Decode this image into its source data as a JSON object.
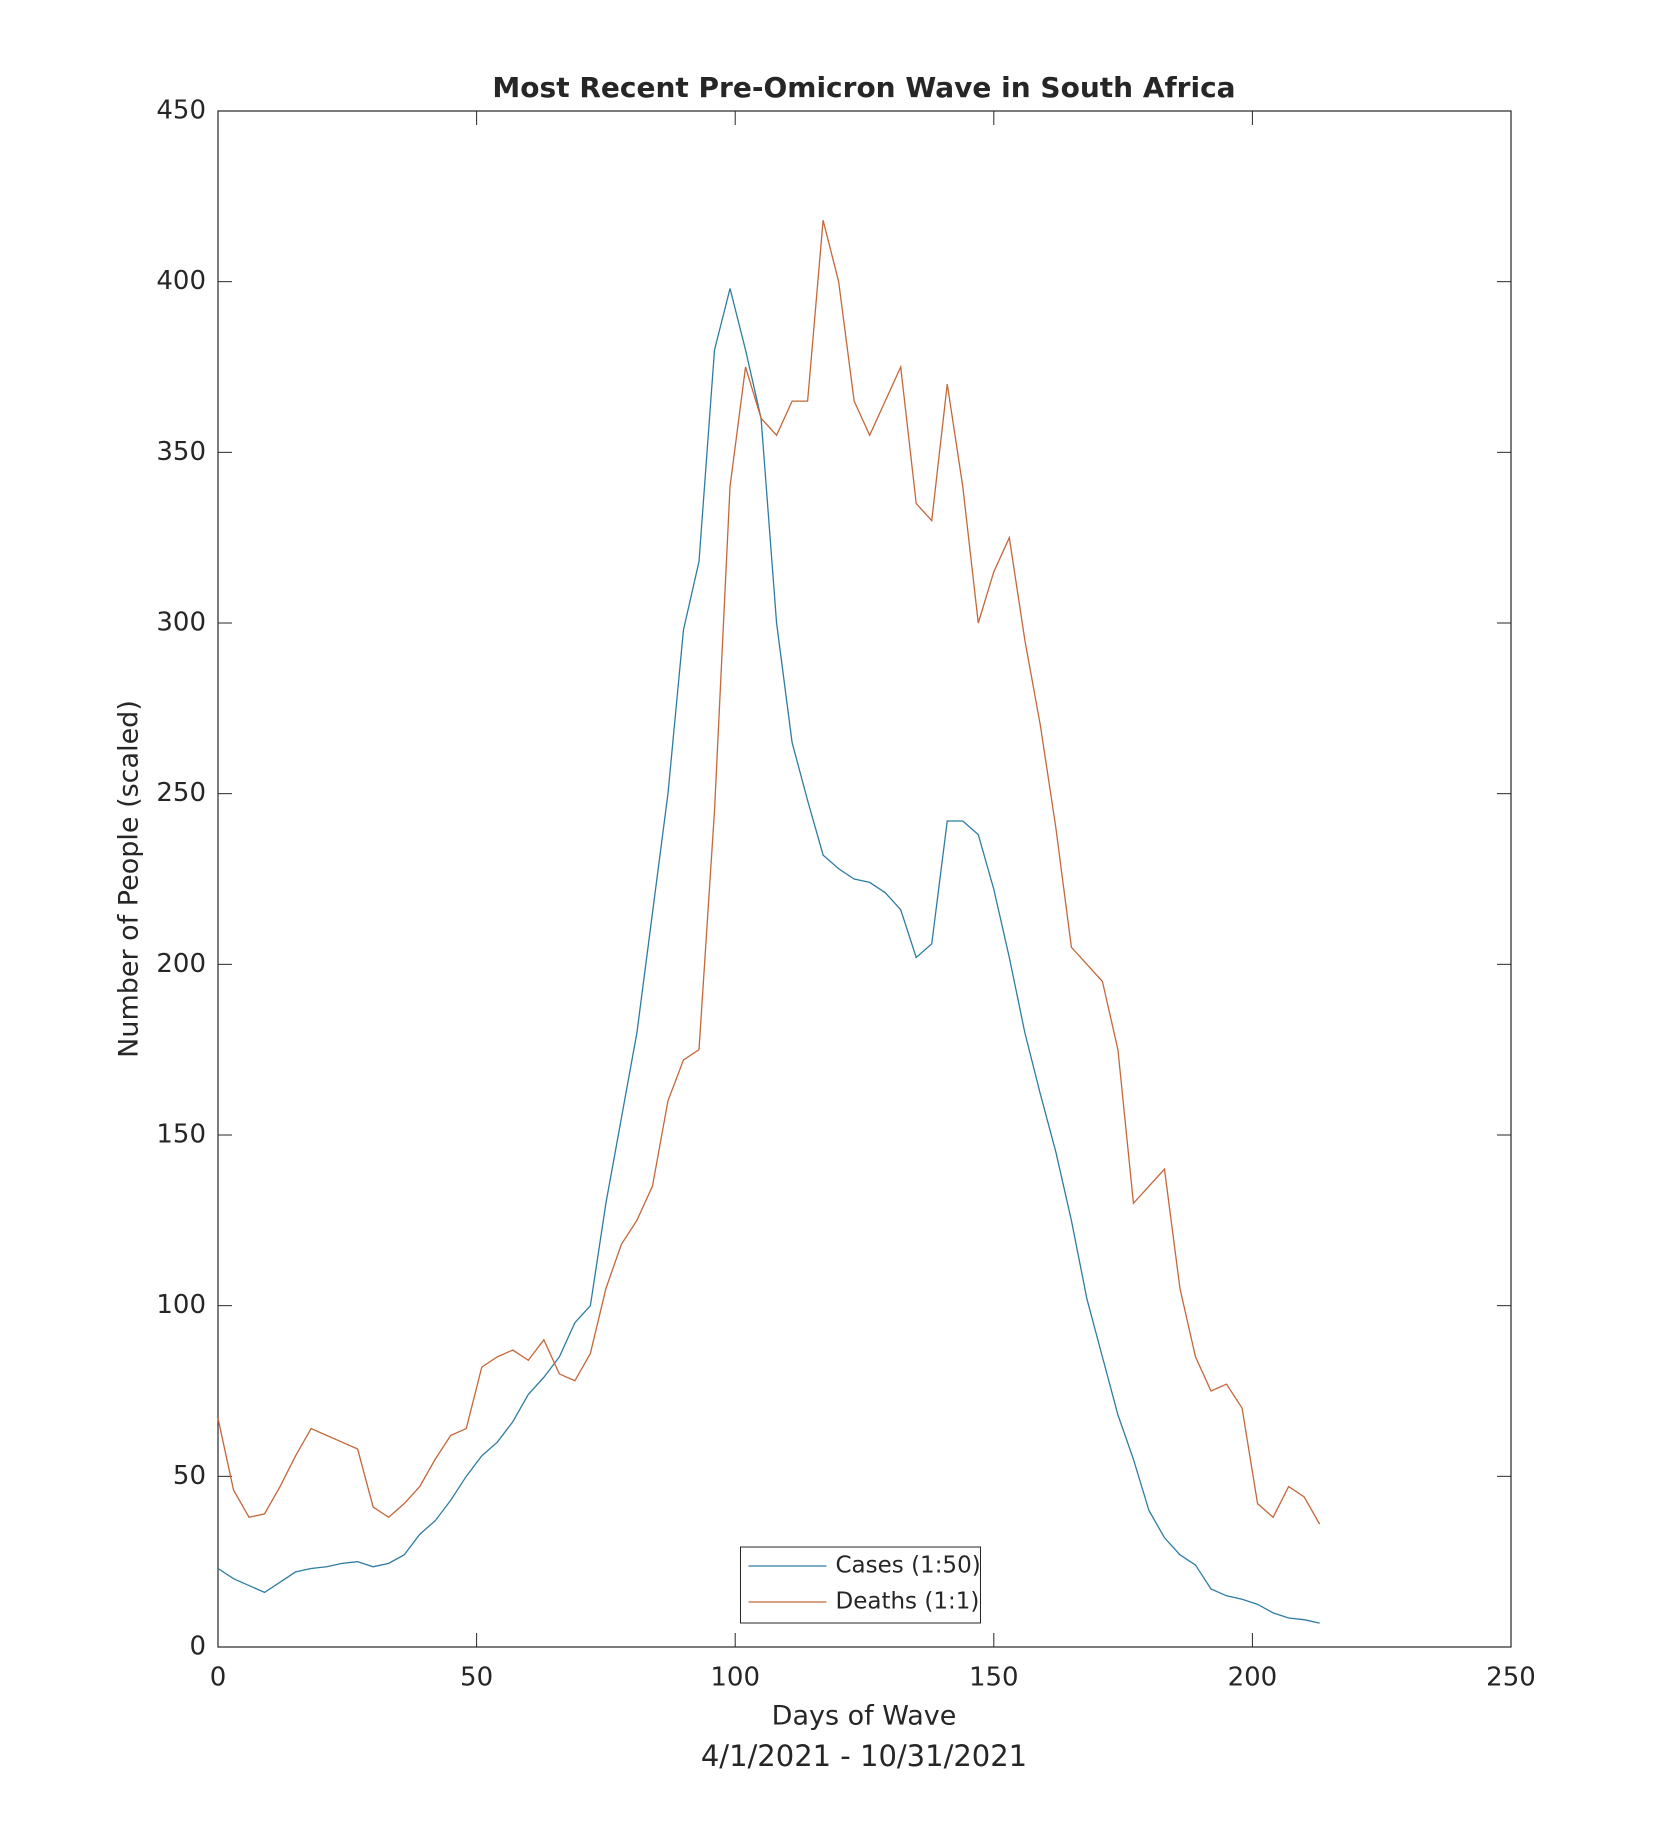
{
  "chart_data": {
    "type": "line",
    "title": "Most Recent Pre-Omicron Wave in South Africa",
    "xlabel": "Days of Wave",
    "subtitle": "4/1/2021 - 10/31/2021",
    "ylabel": "Number of People (scaled)",
    "x": [
      0,
      3,
      6,
      9,
      12,
      15,
      18,
      21,
      24,
      27,
      30,
      33,
      36,
      39,
      42,
      45,
      48,
      51,
      54,
      57,
      60,
      63,
      66,
      69,
      72,
      75,
      78,
      81,
      84,
      87,
      90,
      93,
      96,
      99,
      102,
      105,
      108,
      111,
      114,
      117,
      120,
      123,
      126,
      129,
      132,
      135,
      138,
      141,
      144,
      147,
      150,
      153,
      156,
      159,
      162,
      165,
      168,
      171,
      174,
      177,
      180,
      183,
      186,
      189,
      192,
      195,
      198,
      201,
      204,
      207,
      210,
      213
    ],
    "series": [
      {
        "name": "Cases (1:50)",
        "color": "#2f7ca3",
        "values": [
          23,
          20,
          18,
          16,
          19,
          22,
          23,
          23.5,
          24.5,
          25,
          23.5,
          24.5,
          27,
          33,
          37,
          43,
          50,
          56,
          60,
          66,
          74,
          79,
          85,
          95,
          100,
          130,
          155,
          180,
          215,
          250,
          298,
          318,
          380,
          398,
          380,
          360,
          300,
          265,
          248,
          232,
          228,
          225,
          224,
          221,
          216,
          202,
          206,
          242,
          242,
          238,
          222,
          202,
          180,
          162,
          145,
          125,
          102,
          85,
          68,
          55,
          40,
          32,
          27,
          24,
          17,
          15,
          14,
          12.5,
          10,
          8.5,
          8,
          7
        ]
      },
      {
        "name": "Deaths (1:1)",
        "color": "#c4673a",
        "values": [
          67,
          46,
          38,
          39,
          47,
          56,
          64,
          62,
          60,
          58,
          41,
          38,
          42,
          47,
          55,
          62,
          64,
          82,
          85,
          87,
          84,
          90,
          80,
          78,
          86,
          105,
          118,
          125,
          135,
          160,
          172,
          175,
          245,
          340,
          375,
          360,
          355,
          365,
          365,
          418,
          400,
          365,
          355,
          365,
          375,
          335,
          330,
          370,
          340,
          300,
          315,
          325,
          295,
          270,
          240,
          205,
          200,
          195,
          175,
          130,
          135,
          140,
          105,
          85,
          75,
          77,
          70,
          42,
          38,
          47,
          44,
          36
        ]
      }
    ],
    "xlim": [
      0,
      250
    ],
    "xticks": [
      0,
      50,
      100,
      150,
      200,
      250
    ],
    "ylim": [
      0,
      450
    ],
    "yticks": [
      0,
      50,
      100,
      150,
      200,
      250,
      300,
      350,
      400,
      450
    ],
    "grid": false,
    "legend": "bottom"
  }
}
